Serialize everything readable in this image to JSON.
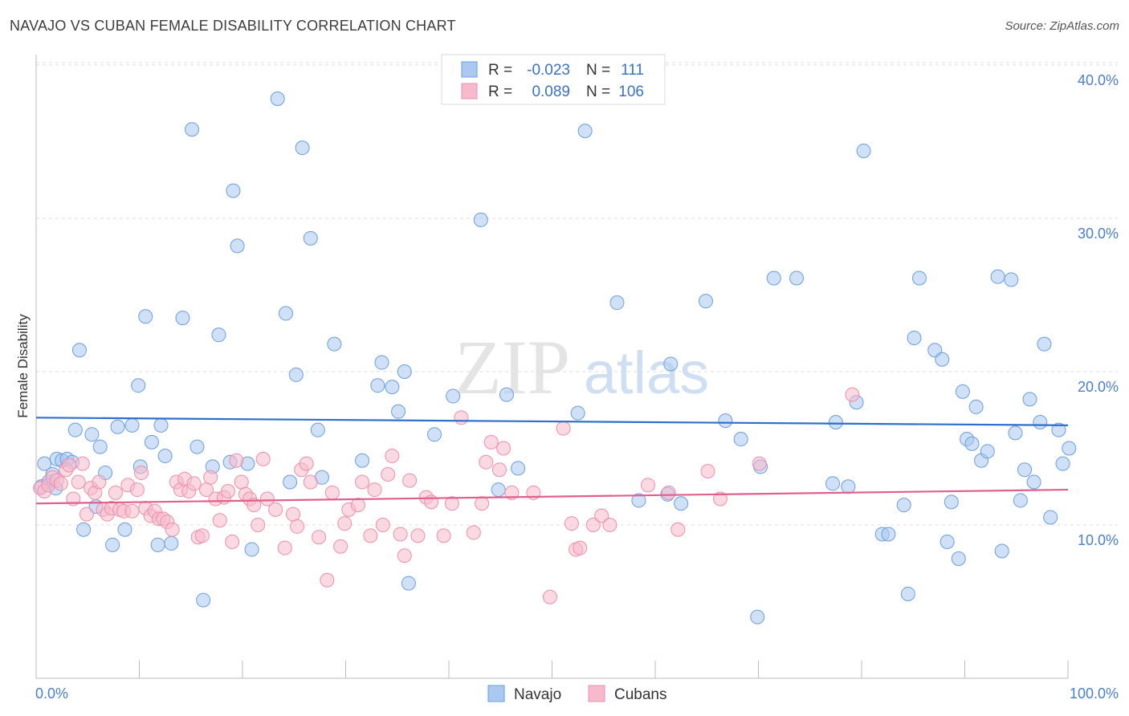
{
  "title": "NAVAJO VS CUBAN FEMALE DISABILITY CORRELATION CHART",
  "source": "Source: ZipAtlas.com",
  "watermark": {
    "zip": "ZIP",
    "atlas": "atlas"
  },
  "colors": {
    "navajo_fill": "#aac8f0",
    "navajo_stroke": "#6a9ee0",
    "navajo_line": "#2f6fcc",
    "cubans_fill": "#f7b9cc",
    "cubans_stroke": "#ee8fab",
    "cubans_line": "#e0608c",
    "tick_text": "#4a7fc9",
    "grid": "#dddddd"
  },
  "legend": {
    "rows": [
      {
        "r_label": "R =",
        "r_value": "-0.023",
        "n_label": "N =",
        "n_value": "111"
      },
      {
        "r_label": "R =",
        "r_value": "0.089",
        "n_label": "N =",
        "n_value": "106"
      }
    ]
  },
  "chart_data": {
    "type": "scatter",
    "title": "NAVAJO VS CUBAN FEMALE DISABILITY CORRELATION CHART",
    "xlabel": "",
    "ylabel": "Female Disability",
    "xlim": [
      0,
      100
    ],
    "ylim": [
      0,
      42
    ],
    "x_tick_labels": [
      "0.0%",
      "100.0%"
    ],
    "y_ticks": [
      10,
      20,
      30,
      40
    ],
    "y_tick_labels": [
      "10.0%",
      "20.0%",
      "30.0%",
      "40.0%"
    ],
    "grid": true,
    "series": [
      {
        "name": "Navajo",
        "r": -0.023,
        "n": 111,
        "trend": {
          "x": [
            0,
            100
          ],
          "y": [
            17.0,
            16.5
          ]
        },
        "points": [
          [
            0.5,
            12.5
          ],
          [
            0.8,
            14
          ],
          [
            1.2,
            12.8
          ],
          [
            1.6,
            13.3
          ],
          [
            2,
            14.3
          ],
          [
            2.5,
            14.2
          ],
          [
            3,
            14.3
          ],
          [
            3.8,
            16.2
          ],
          [
            4.2,
            21.4
          ],
          [
            4.6,
            9.7
          ],
          [
            5.4,
            15.9
          ],
          [
            5.8,
            11.2
          ],
          [
            6.2,
            15.1
          ],
          [
            6.7,
            13.4
          ],
          [
            7.4,
            8.7
          ],
          [
            7.9,
            16.4
          ],
          [
            8.6,
            9.7
          ],
          [
            9.3,
            16.5
          ],
          [
            9.9,
            19.1
          ],
          [
            10.1,
            13.8
          ],
          [
            10.6,
            23.6
          ],
          [
            11.2,
            15.4
          ],
          [
            11.8,
            8.7
          ],
          [
            12.1,
            16.5
          ],
          [
            12.5,
            14.5
          ],
          [
            13.1,
            8.8
          ],
          [
            14.2,
            23.5
          ],
          [
            15.1,
            35.8
          ],
          [
            15.6,
            15.1
          ],
          [
            16.2,
            5.1
          ],
          [
            17.1,
            13.8
          ],
          [
            17.7,
            22.4
          ],
          [
            18.8,
            14.1
          ],
          [
            19.1,
            31.8
          ],
          [
            19.5,
            28.2
          ],
          [
            20.5,
            14
          ],
          [
            20.9,
            8.4
          ],
          [
            23.4,
            37.8
          ],
          [
            24.2,
            23.8
          ],
          [
            24.6,
            12.8
          ],
          [
            25.2,
            19.8
          ],
          [
            25.8,
            34.6
          ],
          [
            26.6,
            28.7
          ],
          [
            27.3,
            16.2
          ],
          [
            27.7,
            13.1
          ],
          [
            28.9,
            21.8
          ],
          [
            31.6,
            14.2
          ],
          [
            33.1,
            19.1
          ],
          [
            33.5,
            20.6
          ],
          [
            34.5,
            19
          ],
          [
            35.1,
            17.4
          ],
          [
            35.7,
            20
          ],
          [
            36.1,
            6.2
          ],
          [
            38.6,
            15.9
          ],
          [
            40.4,
            18.4
          ],
          [
            43.1,
            29.9
          ],
          [
            44.8,
            12.3
          ],
          [
            45.6,
            18.5
          ],
          [
            46.7,
            13.7
          ],
          [
            52.5,
            17.3
          ],
          [
            53.2,
            35.7
          ],
          [
            56.3,
            24.5
          ],
          [
            58.4,
            11.6
          ],
          [
            61.2,
            12
          ],
          [
            61.5,
            20.5
          ],
          [
            62.5,
            11.4
          ],
          [
            64.9,
            24.6
          ],
          [
            66.8,
            16.8
          ],
          [
            68.3,
            15.6
          ],
          [
            69.9,
            4
          ],
          [
            70.2,
            13.8
          ],
          [
            71.5,
            26.1
          ],
          [
            73.7,
            26.1
          ],
          [
            77.2,
            12.7
          ],
          [
            77.5,
            16.7
          ],
          [
            78.7,
            12.5
          ],
          [
            79.5,
            18
          ],
          [
            80.2,
            34.4
          ],
          [
            82,
            9.4
          ],
          [
            82.6,
            9.4
          ],
          [
            84.1,
            11.3
          ],
          [
            84.5,
            5.5
          ],
          [
            85.1,
            22.2
          ],
          [
            85.6,
            26.1
          ],
          [
            87.1,
            21.4
          ],
          [
            87.8,
            20.8
          ],
          [
            88.3,
            8.9
          ],
          [
            88.7,
            11.5
          ],
          [
            89.4,
            7.8
          ],
          [
            89.8,
            18.7
          ],
          [
            90.2,
            15.6
          ],
          [
            90.7,
            15.3
          ],
          [
            91.1,
            17.7
          ],
          [
            91.6,
            14.2
          ],
          [
            92.2,
            14.8
          ],
          [
            93.2,
            26.2
          ],
          [
            93.6,
            8.3
          ],
          [
            94.5,
            26
          ],
          [
            94.9,
            16
          ],
          [
            95.4,
            11.6
          ],
          [
            95.8,
            13.6
          ],
          [
            96.3,
            18.2
          ],
          [
            96.7,
            12.8
          ],
          [
            97.3,
            16.7
          ],
          [
            97.7,
            21.8
          ],
          [
            98.3,
            10.5
          ],
          [
            99.1,
            16.2
          ],
          [
            99.5,
            14
          ],
          [
            100.1,
            15
          ],
          [
            1.9,
            12.4
          ],
          [
            3.5,
            14.1
          ]
        ]
      },
      {
        "name": "Cubans",
        "r": 0.089,
        "n": 106,
        "trend": {
          "x": [
            0,
            100
          ],
          "y": [
            11.4,
            12.3
          ]
        },
        "points": [
          [
            0.4,
            12.4
          ],
          [
            0.8,
            12.2
          ],
          [
            1.2,
            12.6
          ],
          [
            1.6,
            13.1
          ],
          [
            2,
            12.9
          ],
          [
            2.4,
            12.7
          ],
          [
            2.9,
            13.6
          ],
          [
            3.2,
            13.9
          ],
          [
            3.6,
            11.7
          ],
          [
            4.1,
            12.8
          ],
          [
            4.5,
            14
          ],
          [
            4.9,
            10.7
          ],
          [
            5.3,
            12.4
          ],
          [
            5.7,
            12.1
          ],
          [
            6.1,
            12.8
          ],
          [
            6.5,
            11
          ],
          [
            6.9,
            10.7
          ],
          [
            7.3,
            11.1
          ],
          [
            7.7,
            12.1
          ],
          [
            8.1,
            11
          ],
          [
            8.5,
            10.9
          ],
          [
            8.9,
            12.6
          ],
          [
            9.3,
            10.9
          ],
          [
            9.8,
            12.3
          ],
          [
            10.2,
            13.4
          ],
          [
            10.6,
            11.1
          ],
          [
            11.1,
            10.6
          ],
          [
            11.5,
            10.9
          ],
          [
            11.9,
            10.4
          ],
          [
            12.3,
            10.4
          ],
          [
            12.7,
            10.2
          ],
          [
            13.2,
            9.7
          ],
          [
            13.6,
            12.8
          ],
          [
            14,
            12.3
          ],
          [
            14.4,
            13
          ],
          [
            14.8,
            12.2
          ],
          [
            15.3,
            12.7
          ],
          [
            15.7,
            9.2
          ],
          [
            16.1,
            9.3
          ],
          [
            16.5,
            12.3
          ],
          [
            16.9,
            13.1
          ],
          [
            17.4,
            11.7
          ],
          [
            17.8,
            10.3
          ],
          [
            18.2,
            11.8
          ],
          [
            18.6,
            12.2
          ],
          [
            19,
            8.9
          ],
          [
            19.4,
            14.2
          ],
          [
            19.9,
            12.8
          ],
          [
            20.3,
            12
          ],
          [
            20.7,
            11.7
          ],
          [
            21.1,
            11.3
          ],
          [
            21.5,
            10
          ],
          [
            22,
            14.3
          ],
          [
            22.4,
            11.7
          ],
          [
            23.2,
            11
          ],
          [
            24.1,
            8.5
          ],
          [
            24.9,
            10.7
          ],
          [
            25.3,
            9.9
          ],
          [
            25.7,
            13.6
          ],
          [
            26.2,
            14
          ],
          [
            26.6,
            12.8
          ],
          [
            27.4,
            9.2
          ],
          [
            28.2,
            6.4
          ],
          [
            28.7,
            12.1
          ],
          [
            29.5,
            8.6
          ],
          [
            29.9,
            10.1
          ],
          [
            30.3,
            11
          ],
          [
            31.2,
            11.3
          ],
          [
            31.6,
            12.8
          ],
          [
            32.4,
            9.3
          ],
          [
            32.8,
            12.3
          ],
          [
            33.6,
            10
          ],
          [
            34.1,
            13.3
          ],
          [
            34.5,
            14.5
          ],
          [
            35.3,
            9.4
          ],
          [
            35.7,
            8
          ],
          [
            36.2,
            12.9
          ],
          [
            37,
            9.3
          ],
          [
            37.8,
            11.8
          ],
          [
            38.3,
            11.5
          ],
          [
            39.5,
            9.3
          ],
          [
            40.3,
            11.4
          ],
          [
            41.2,
            17
          ],
          [
            42.4,
            9.5
          ],
          [
            43.2,
            11.4
          ],
          [
            43.6,
            14.1
          ],
          [
            44.1,
            15.4
          ],
          [
            44.9,
            13.6
          ],
          [
            45.3,
            15
          ],
          [
            46.1,
            12.1
          ],
          [
            48.2,
            12.1
          ],
          [
            49.8,
            5.3
          ],
          [
            51.1,
            16.3
          ],
          [
            51.9,
            10.1
          ],
          [
            52.3,
            8.4
          ],
          [
            52.7,
            8.5
          ],
          [
            54,
            10
          ],
          [
            54.8,
            10.6
          ],
          [
            55.6,
            10
          ],
          [
            59.3,
            12.6
          ],
          [
            61.3,
            12.1
          ],
          [
            62.2,
            9.7
          ],
          [
            65.1,
            13.5
          ],
          [
            66.3,
            11.7
          ],
          [
            70.1,
            14
          ],
          [
            79.1,
            18.5
          ]
        ]
      }
    ],
    "bottom_legend": [
      "Navajo",
      "Cubans"
    ]
  }
}
